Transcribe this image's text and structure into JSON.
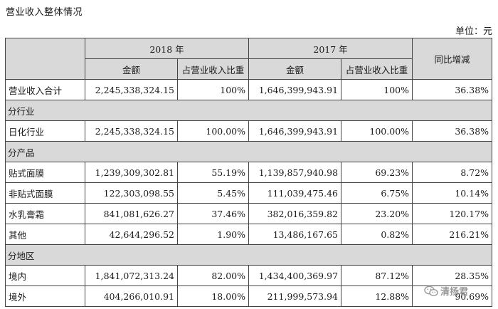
{
  "title": "营业收入整体情况",
  "unit_label": "单位：元",
  "table": {
    "year_headers": [
      "2018 年",
      "2017 年"
    ],
    "change_header": "同比增减",
    "sub_headers": [
      "金额",
      "占营业收入比重",
      "金额",
      "占营业收入比重"
    ],
    "total_row": {
      "label": "营业收入合计",
      "amount_2018": "2,245,338,324.15",
      "share_2018": "100%",
      "amount_2017": "1,646,399,943.91",
      "share_2017": "100%",
      "change": "36.38%"
    },
    "sections": [
      {
        "title": "分行业",
        "rows": [
          {
            "label": "日化行业",
            "amount_2018": "2,245,338,324.15",
            "share_2018": "100.00%",
            "amount_2017": "1,646,399,943.91",
            "share_2017": "100.00%",
            "change": "36.38%"
          }
        ]
      },
      {
        "title": "分产品",
        "rows": [
          {
            "label": "贴式面膜",
            "amount_2018": "1,239,309,302.81",
            "share_2018": "55.19%",
            "amount_2017": "1,139,857,940.98",
            "share_2017": "69.23%",
            "change": "8.72%"
          },
          {
            "label": "非贴式面膜",
            "amount_2018": "122,303,098.55",
            "share_2018": "5.45%",
            "amount_2017": "111,039,475.46",
            "share_2017": "6.75%",
            "change": "10.14%"
          },
          {
            "label": "水乳膏霜",
            "amount_2018": "841,081,626.27",
            "share_2018": "37.46%",
            "amount_2017": "382,016,359.82",
            "share_2017": "23.20%",
            "change": "120.17%"
          },
          {
            "label": "其他",
            "amount_2018": "42,644,296.52",
            "share_2018": "1.90%",
            "amount_2017": "13,486,167.65",
            "share_2017": "0.82%",
            "change": "216.21%"
          }
        ]
      },
      {
        "title": "分地区",
        "rows": [
          {
            "label": "境内",
            "amount_2018": "1,841,072,313.24",
            "share_2018": "82.00%",
            "amount_2017": "1,434,400,369.97",
            "share_2017": "87.12%",
            "change": "28.35%"
          },
          {
            "label": "境外",
            "amount_2018": "404,266,010.91",
            "share_2018": "18.00%",
            "amount_2017": "211,999,573.94",
            "share_2017": "12.88%",
            "change": "90.69%"
          }
        ]
      }
    ]
  },
  "watermark": {
    "text": "清扬君",
    "icon": "wechat-icon"
  }
}
